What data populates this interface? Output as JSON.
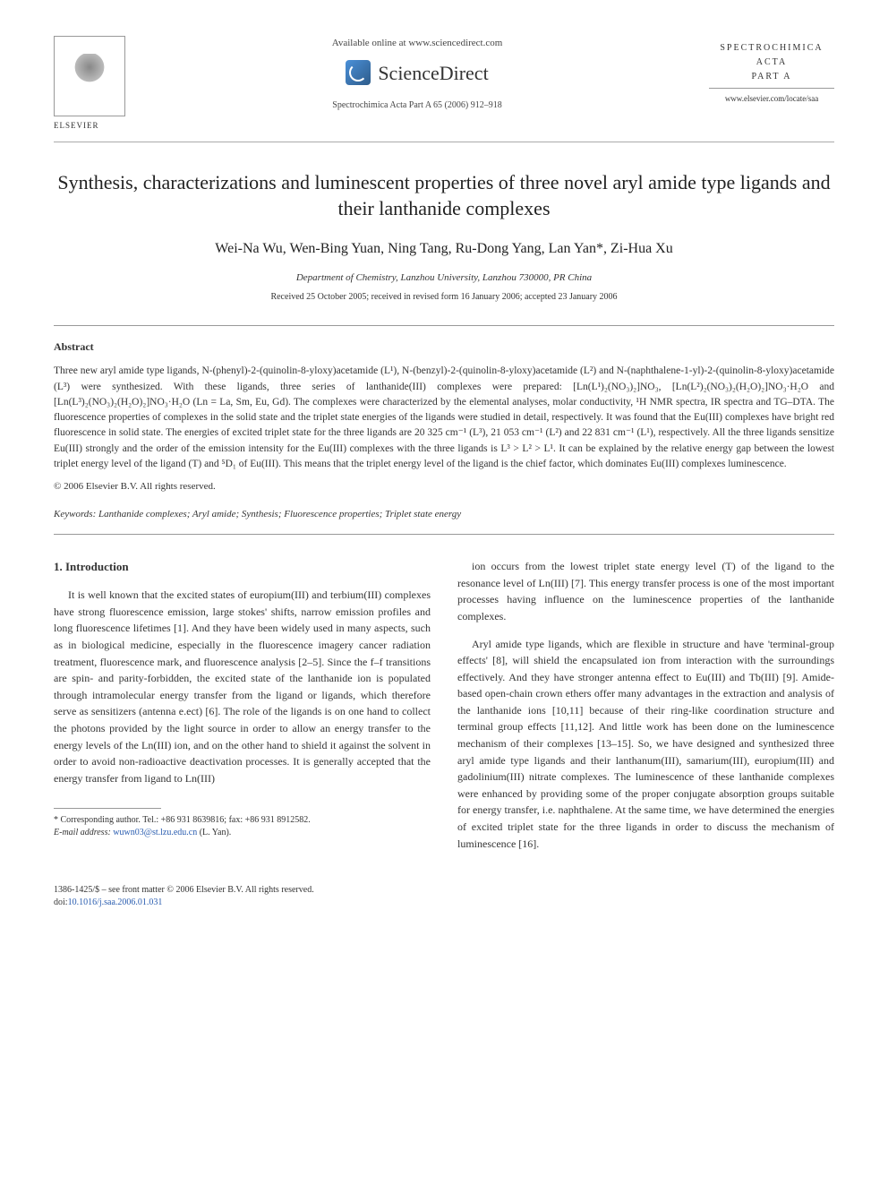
{
  "header": {
    "available_text": "Available online at www.sciencedirect.com",
    "brand": "ScienceDirect",
    "journal_ref": "Spectrochimica Acta Part A 65 (2006) 912–918",
    "publisher_name": "ELSEVIER",
    "journal_box_line1": "SPECTROCHIMICA",
    "journal_box_line2": "ACTA",
    "journal_box_line3": "PART A",
    "journal_url": "www.elsevier.com/locate/saa"
  },
  "article": {
    "title": "Synthesis, characterizations and luminescent properties of three novel aryl amide type ligands and their lanthanide complexes",
    "authors": "Wei-Na Wu, Wen-Bing Yuan, Ning Tang, Ru-Dong Yang, Lan Yan*, Zi-Hua Xu",
    "affiliation": "Department of Chemistry, Lanzhou University, Lanzhou 730000, PR China",
    "dates": "Received 25 October 2005; received in revised form 16 January 2006; accepted 23 January 2006"
  },
  "abstract": {
    "heading": "Abstract",
    "text": "Three new aryl amide type ligands, N-(phenyl)-2-(quinolin-8-yloxy)acetamide (L¹), N-(benzyl)-2-(quinolin-8-yloxy)acetamide (L²) and N-(naphthalene-1-yl)-2-(quinolin-8-yloxy)acetamide (L³) were synthesized. With these ligands, three series of lanthanide(III) complexes were prepared: [Ln(L¹)₂(NO₃)₂]NO₃, [Ln(L²)₂(NO₃)₂(H₂O)₂]NO₃·H₂O and [Ln(L³)₂(NO₃)₂(H₂O)₂]NO₃·H₂O (Ln = La, Sm, Eu, Gd). The complexes were characterized by the elemental analyses, molar conductivity, ¹H NMR spectra, IR spectra and TG–DTA. The fluorescence properties of complexes in the solid state and the triplet state energies of the ligands were studied in detail, respectively. It was found that the Eu(III) complexes have bright red fluorescence in solid state. The energies of excited triplet state for the three ligands are 20 325 cm⁻¹ (L³), 21 053 cm⁻¹ (L²) and 22 831 cm⁻¹ (L¹), respectively. All the three ligands sensitize Eu(III) strongly and the order of the emission intensity for the Eu(III) complexes with the three ligands is L³ > L² > L¹. It can be explained by the relative energy gap between the lowest triplet energy level of the ligand (T) and ⁵D₁ of Eu(III). This means that the triplet energy level of the ligand is the chief factor, which dominates Eu(III) complexes luminescence.",
    "copyright": "© 2006 Elsevier B.V. All rights reserved."
  },
  "keywords": {
    "label": "Keywords:",
    "text": "Lanthanide complexes; Aryl amide; Synthesis; Fluorescence properties; Triplet state energy"
  },
  "body": {
    "section_heading": "1. Introduction",
    "col1_p1": "It is well known that the excited states of europium(III) and terbium(III) complexes have strong fluorescence emission, large stokes' shifts, narrow emission profiles and long fluorescence lifetimes [1]. And they have been widely used in many aspects, such as in biological medicine, especially in the fluorescence imagery cancer radiation treatment, fluorescence mark, and fluorescence analysis [2–5]. Since the f–f transitions are spin- and parity-forbidden, the excited state of the lanthanide ion is populated through intramolecular energy transfer from the ligand or ligands, which therefore serve as sensitizers (antenna e.ect) [6]. The role of the ligands is on one hand to collect the photons provided by the light source in order to allow an energy transfer to the energy levels of the Ln(III) ion, and on the other hand to shield it against the solvent in order to avoid non-radioactive deactivation processes. It is generally accepted that the energy transfer from ligand to Ln(III)",
    "col2_p1": "ion occurs from the lowest triplet state energy level (T) of the ligand to the resonance level of Ln(III) [7]. This energy transfer process is one of the most important processes having influence on the luminescence properties of the lanthanide complexes.",
    "col2_p2": "Aryl amide type ligands, which are flexible in structure and have 'terminal-group effects' [8], will shield the encapsulated ion from interaction with the surroundings effectively. And they have stronger antenna effect to Eu(III) and Tb(III) [9]. Amide-based open-chain crown ethers offer many advantages in the extraction and analysis of the lanthanide ions [10,11] because of their ring-like coordination structure and terminal group effects [11,12]. And little work has been done on the luminescence mechanism of their complexes [13–15]. So, we have designed and synthesized three aryl amide type ligands and their lanthanum(III), samarium(III), europium(III) and gadolinium(III) nitrate complexes. The luminescence of these lanthanide complexes were enhanced by providing some of the proper conjugate absorption groups suitable for energy transfer, i.e. naphthalene. At the same time, we have determined the energies of excited triplet state for the three ligands in order to discuss the mechanism of luminescence [16]."
  },
  "footnote": {
    "corresponding": "* Corresponding author. Tel.: +86 931 8639816; fax: +86 931 8912582.",
    "email_label": "E-mail address:",
    "email": "wuwn03@st.lzu.edu.cn",
    "email_suffix": "(L. Yan)."
  },
  "footer": {
    "issn_line": "1386-1425/$ – see front matter © 2006 Elsevier B.V. All rights reserved.",
    "doi_label": "doi:",
    "doi": "10.1016/j.saa.2006.01.031"
  }
}
